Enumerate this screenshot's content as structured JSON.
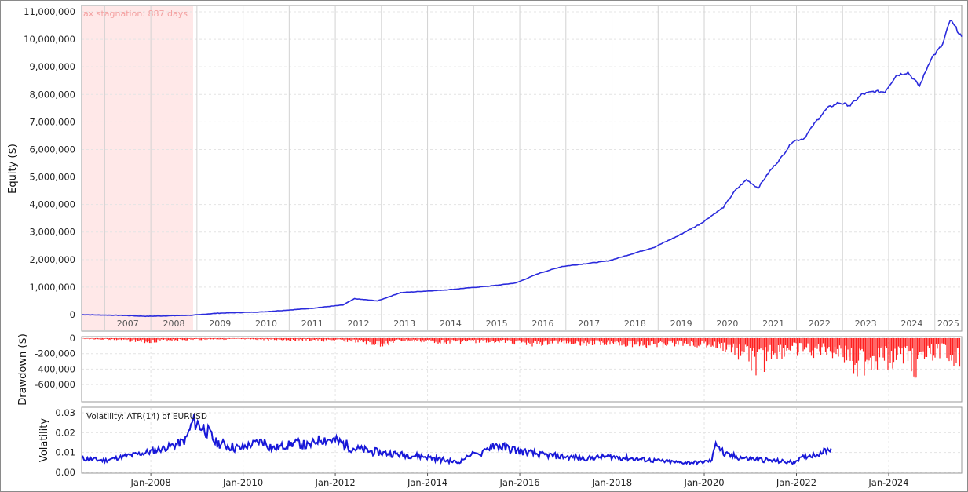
{
  "chart_data": [
    {
      "type": "line",
      "ylabel": "Equity ($)",
      "ylim": [
        0,
        11000000
      ],
      "yticks": [
        0,
        1000000,
        2000000,
        3000000,
        4000000,
        5000000,
        6000000,
        7000000,
        8000000,
        9000000,
        10000000,
        11000000
      ],
      "ytick_labels": [
        "0",
        "1,000,000",
        "2,000,000",
        "3,000,000",
        "4,000,000",
        "5,000,000",
        "6,000,000",
        "7,000,000",
        "8,000,000",
        "9,000,000",
        "10,000,000",
        "11,000,000"
      ],
      "year_labels": [
        "2007",
        "2008",
        "2009",
        "2010",
        "2011",
        "2012",
        "2013",
        "2014",
        "2015",
        "2016",
        "2017",
        "2018",
        "2019",
        "2020",
        "2021",
        "2022",
        "2023",
        "2024",
        "2025"
      ],
      "annotation": "ax stagnation: 887 days",
      "stagnation_period": [
        "2006-07",
        "2008-12"
      ],
      "xlim": [
        "2006-07",
        "2025-08"
      ],
      "grid": true,
      "series": [
        {
          "color": "#2b2bdc",
          "x": [
            "2006-07",
            "2007-06",
            "2007-12",
            "2008-06",
            "2008-12",
            "2009-06",
            "2010-06",
            "2011-06",
            "2012-03",
            "2012-06",
            "2012-12",
            "2013-06",
            "2014-06",
            "2015-06",
            "2015-12",
            "2016-06",
            "2016-12",
            "2017-06",
            "2017-12",
            "2018-06",
            "2018-12",
            "2019-06",
            "2019-12",
            "2020-06",
            "2020-09",
            "2020-12",
            "2021-03",
            "2021-06",
            "2021-09",
            "2021-12",
            "2022-03",
            "2022-06",
            "2022-09",
            "2022-12",
            "2023-03",
            "2023-06",
            "2023-09",
            "2023-12",
            "2024-03",
            "2024-06",
            "2024-09",
            "2024-12",
            "2025-03",
            "2025-05",
            "2025-08"
          ],
          "y": [
            0,
            -30000,
            -60000,
            -40000,
            -20000,
            50000,
            100000,
            220000,
            350000,
            580000,
            500000,
            800000,
            900000,
            1050000,
            1150000,
            1500000,
            1750000,
            1850000,
            1950000,
            2200000,
            2450000,
            2850000,
            3300000,
            3900000,
            4500000,
            4900000,
            4600000,
            5200000,
            5700000,
            6300000,
            6400000,
            7000000,
            7500000,
            7700000,
            7600000,
            8000000,
            8100000,
            8100000,
            8700000,
            8800000,
            8300000,
            9300000,
            9800000,
            10700000,
            10100000
          ]
        }
      ]
    },
    {
      "type": "area",
      "ylabel": "Drawdown ($)",
      "ylim": [
        -680000,
        0
      ],
      "yticks": [
        0,
        -200000,
        -400000,
        -600000
      ],
      "ytick_labels": [
        "0",
        "-200,000",
        "-400,000",
        "-600,000"
      ],
      "xlim": [
        "2006-07",
        "2025-08"
      ],
      "grid": true,
      "series": [
        {
          "color": "#ff2020",
          "x": [
            "2006-07",
            "2007-03",
            "2007-12",
            "2008-06",
            "2009-06",
            "2010-06",
            "2011-06",
            "2012-06",
            "2012-12",
            "2013-06",
            "2014-06",
            "2015-06",
            "2015-12",
            "2016-06",
            "2016-12",
            "2017-06",
            "2017-12",
            "2018-06",
            "2018-12",
            "2019-06",
            "2019-12",
            "2020-06",
            "2020-12",
            "2021-03",
            "2021-06",
            "2021-09",
            "2021-12",
            "2022-06",
            "2022-09",
            "2022-12",
            "2023-03",
            "2023-06",
            "2023-09",
            "2023-12",
            "2024-03",
            "2024-06",
            "2024-09",
            "2024-12",
            "2025-03",
            "2025-06",
            "2025-08"
          ],
          "y": [
            -10000,
            -30000,
            -70000,
            -40000,
            -20000,
            -30000,
            -40000,
            -60000,
            -140000,
            -50000,
            -80000,
            -60000,
            -90000,
            -120000,
            -80000,
            -110000,
            -90000,
            -120000,
            -150000,
            -100000,
            -130000,
            -200000,
            -350000,
            -580000,
            -320000,
            -300000,
            -220000,
            -280000,
            -250000,
            -300000,
            -450000,
            -550000,
            -480000,
            -400000,
            -420000,
            -380000,
            -640000,
            -300000,
            -250000,
            -380000,
            -600000
          ]
        }
      ]
    },
    {
      "type": "line",
      "ylabel": "Volatility",
      "legend": "Volatility: ATR(14) of EURUSD",
      "ylim": [
        0,
        0.03
      ],
      "yticks": [
        0,
        0.01,
        0.02,
        0.03
      ],
      "ytick_labels": [
        "0.00",
        "0.01",
        "0.02",
        "0.03"
      ],
      "x_tick_labels": [
        "Jan-2008",
        "Jan-2010",
        "Jan-2012",
        "Jan-2014",
        "Jan-2016",
        "Jan-2018",
        "Jan-2020",
        "Jan-2022",
        "Jan-2024"
      ],
      "xlim": [
        "2006-07",
        "2025-08"
      ],
      "grid": true,
      "series": [
        {
          "color": "#1818d8",
          "x": [
            "2006-07",
            "2007-01",
            "2007-06",
            "2007-12",
            "2008-06",
            "2008-10",
            "2008-12",
            "2009-03",
            "2009-06",
            "2009-12",
            "2010-06",
            "2010-09",
            "2011-03",
            "2011-06",
            "2011-09",
            "2012-01",
            "2012-06",
            "2012-12",
            "2013-06",
            "2013-12",
            "2014-06",
            "2014-09",
            "2015-01",
            "2015-03",
            "2015-06",
            "2015-12",
            "2016-06",
            "2016-12",
            "2017-06",
            "2017-12",
            "2018-06",
            "2018-12",
            "2019-06",
            "2019-12",
            "2020-03",
            "2020-04",
            "2020-06",
            "2020-12",
            "2021-06",
            "2021-12",
            "2022-03",
            "2022-06",
            "2022-10"
          ],
          "y": [
            0.007,
            0.006,
            0.008,
            0.01,
            0.013,
            0.016,
            0.026,
            0.022,
            0.015,
            0.012,
            0.016,
            0.012,
            0.015,
            0.013,
            0.017,
            0.016,
            0.012,
            0.01,
            0.009,
            0.008,
            0.006,
            0.005,
            0.01,
            0.009,
            0.014,
            0.011,
            0.009,
            0.008,
            0.007,
            0.008,
            0.007,
            0.006,
            0.005,
            0.005,
            0.006,
            0.016,
            0.009,
            0.007,
            0.006,
            0.005,
            0.008,
            0.009,
            0.012
          ]
        }
      ]
    }
  ]
}
